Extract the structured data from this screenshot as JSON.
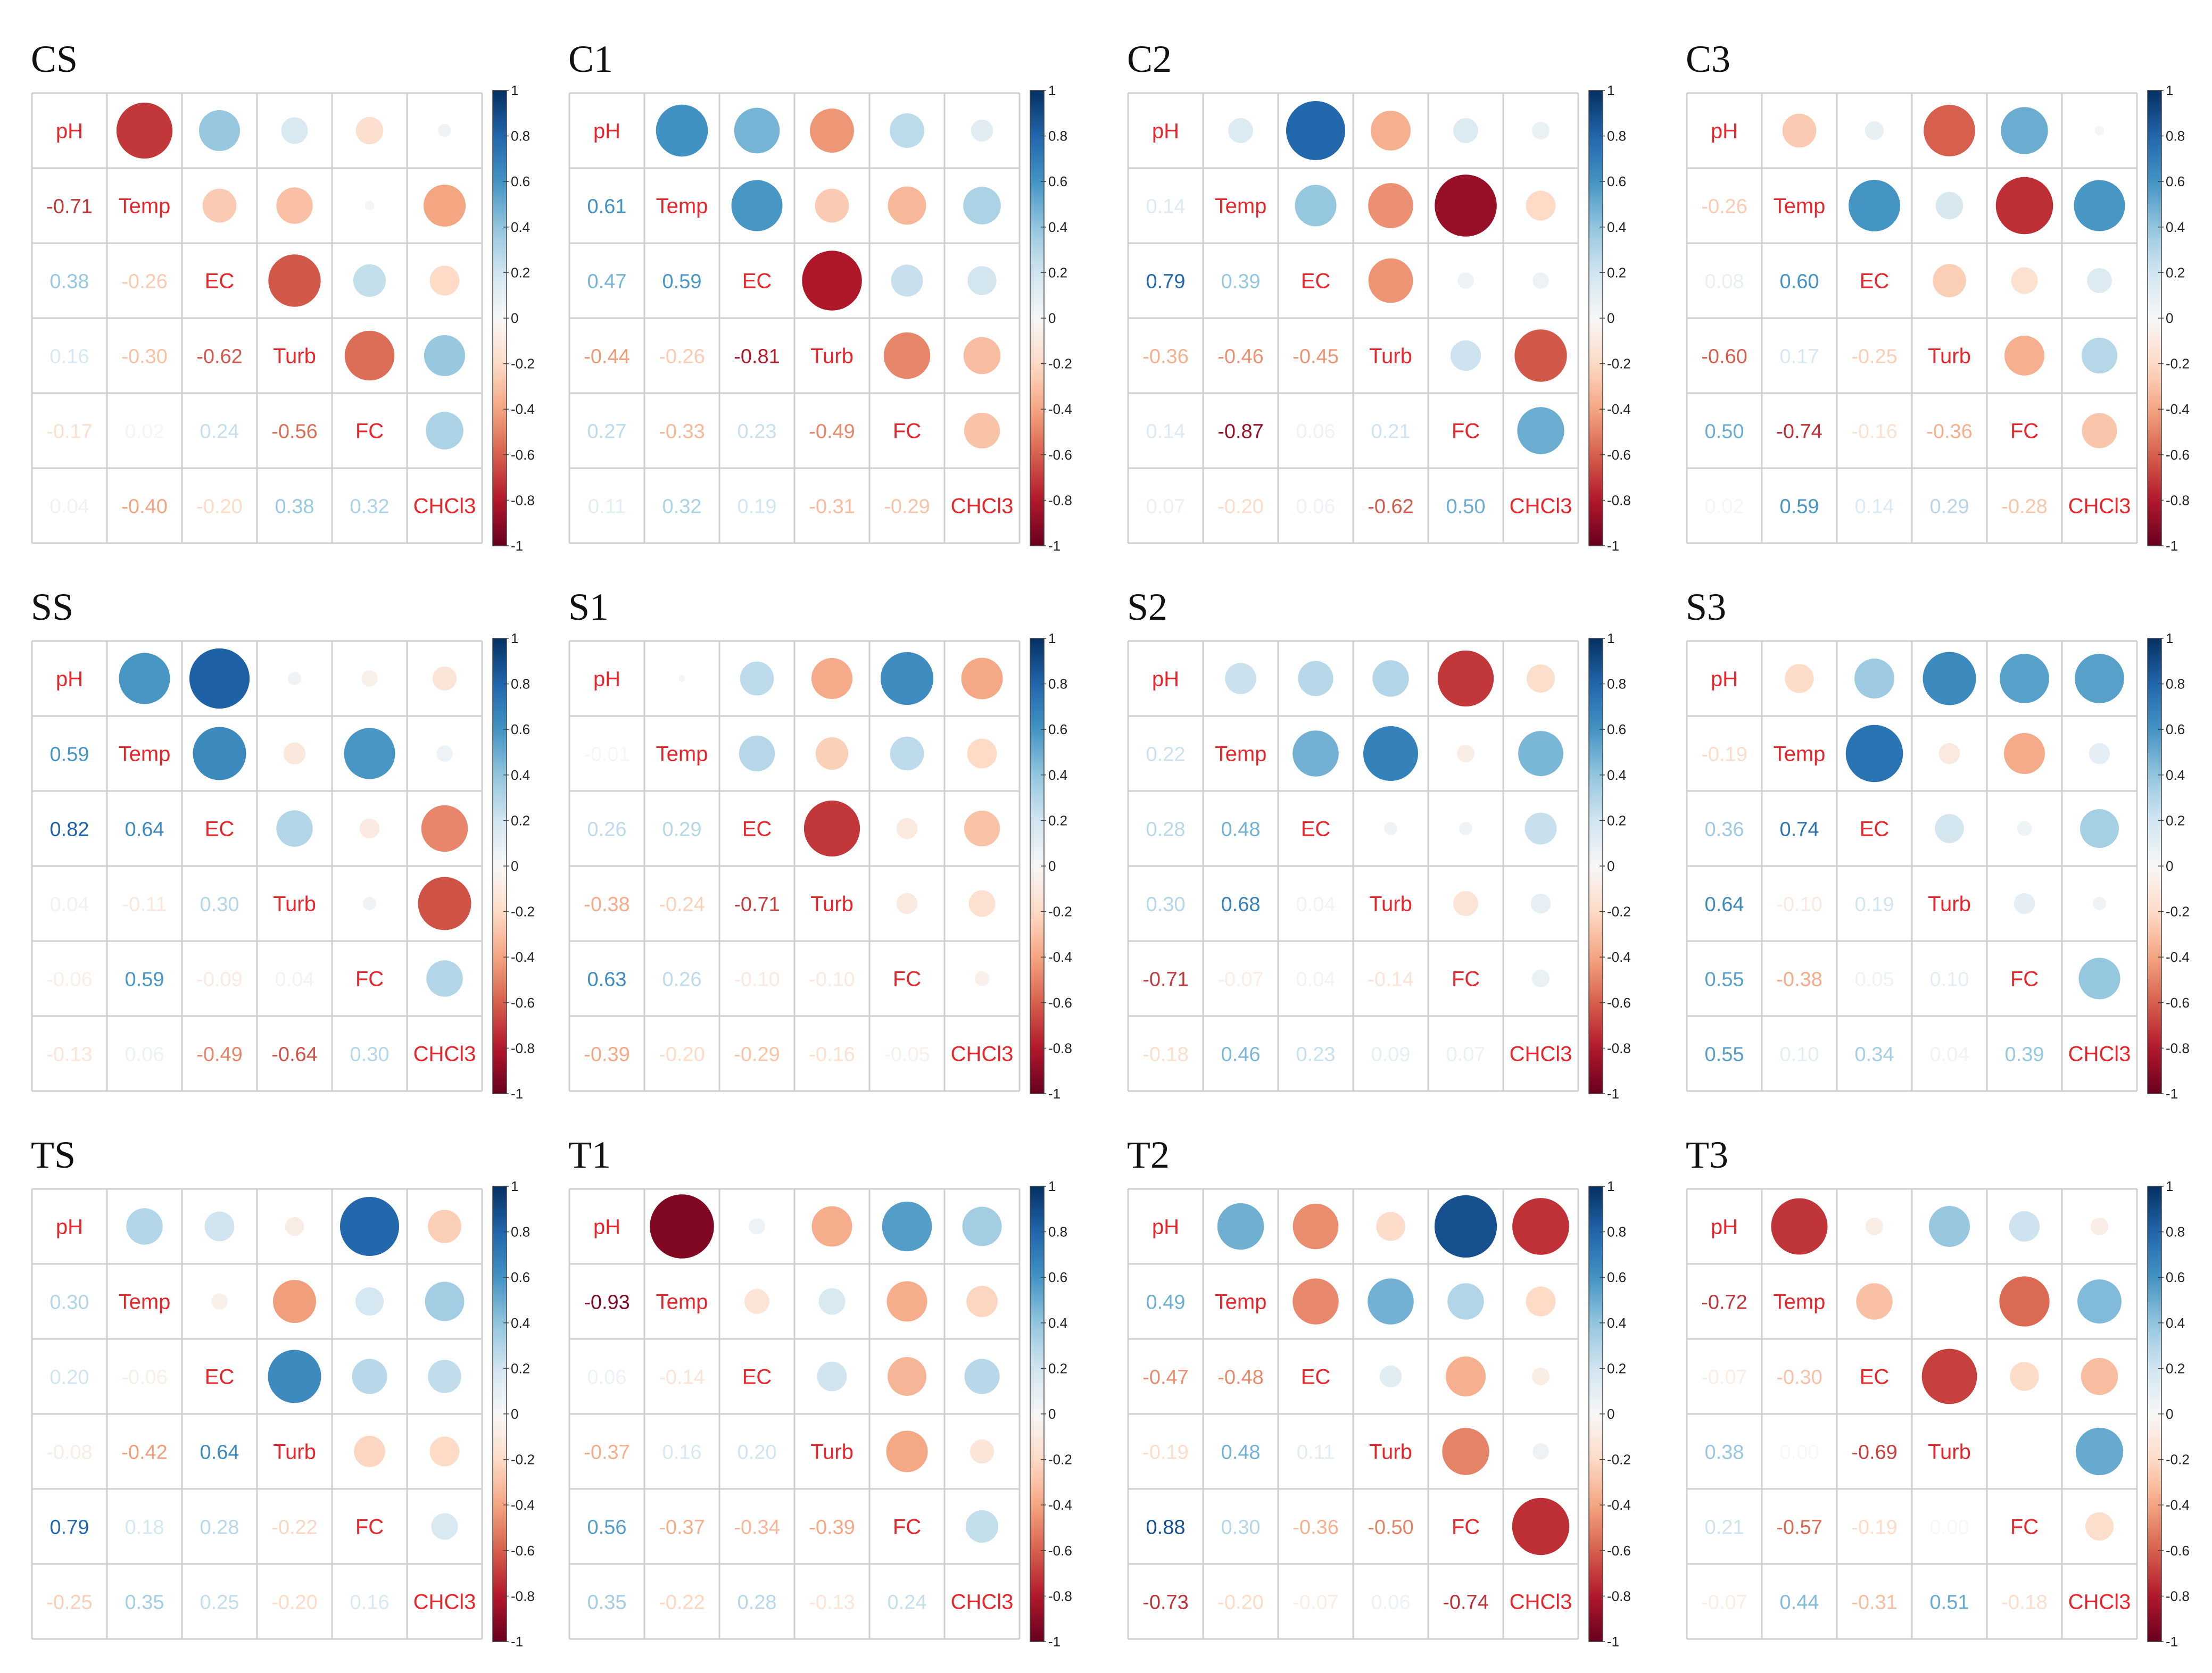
{
  "chart_data": {
    "type": "heatmap",
    "variables": [
      "pH",
      "Temp",
      "EC",
      "Turb",
      "FC",
      "CHCl3"
    ],
    "colorbar_ticks": [
      "1",
      "0.8",
      "0.6",
      "0.4",
      "0.2",
      "0",
      "-0.2",
      "-0.4",
      "-0.6",
      "-0.8",
      "-1"
    ],
    "colors": {
      "negative_strong": "#67001f",
      "positive_strong": "#053061",
      "label_text": "#e8252b",
      "grid": "#cfcfcf"
    },
    "panels": [
      {
        "title": "CS",
        "lower": [
          [
            -0.71
          ],
          [
            0.38,
            -0.26
          ],
          [
            0.16,
            -0.3,
            -0.62
          ],
          [
            -0.17,
            0.02,
            0.24,
            -0.56
          ],
          [
            0.04,
            -0.4,
            -0.2,
            0.38,
            0.32
          ]
        ]
      },
      {
        "title": "C1",
        "lower": [
          [
            0.61
          ],
          [
            0.47,
            0.59
          ],
          [
            -0.44,
            -0.26,
            -0.81
          ],
          [
            0.27,
            -0.33,
            0.23,
            -0.49
          ],
          [
            0.11,
            0.32,
            0.19,
            -0.31,
            -0.29
          ]
        ]
      },
      {
        "title": "C2",
        "lower": [
          [
            0.14
          ],
          [
            0.79,
            0.39
          ],
          [
            -0.36,
            -0.46,
            -0.45
          ],
          [
            0.14,
            -0.87,
            0.06,
            0.21
          ],
          [
            0.07,
            -0.2,
            0.06,
            -0.62,
            0.5
          ]
        ]
      },
      {
        "title": "C3",
        "lower": [
          [
            -0.26
          ],
          [
            0.08,
            0.6
          ],
          [
            -0.6,
            0.17,
            -0.25
          ],
          [
            0.5,
            -0.74,
            -0.16,
            -0.36
          ],
          [
            0.02,
            0.59,
            0.14,
            0.29,
            -0.28
          ]
        ]
      },
      {
        "title": "SS",
        "lower": [
          [
            0.59
          ],
          [
            0.82,
            0.64
          ],
          [
            0.04,
            -0.11,
            0.3
          ],
          [
            -0.06,
            0.59,
            -0.09,
            0.04
          ],
          [
            -0.13,
            0.06,
            -0.49,
            -0.64,
            0.3
          ]
        ]
      },
      {
        "title": "S1",
        "lower": [
          [
            -0.01
          ],
          [
            0.26,
            0.29
          ],
          [
            -0.38,
            -0.24,
            -0.71
          ],
          [
            0.63,
            0.26,
            -0.1,
            -0.1
          ],
          [
            -0.39,
            -0.2,
            -0.29,
            -0.16,
            -0.05
          ]
        ]
      },
      {
        "title": "S2",
        "lower": [
          [
            0.22
          ],
          [
            0.28,
            0.48
          ],
          [
            0.3,
            0.68,
            0.04
          ],
          [
            -0.71,
            -0.07,
            0.04,
            -0.14
          ],
          [
            -0.18,
            0.46,
            0.23,
            0.09,
            0.07
          ]
        ]
      },
      {
        "title": "S3",
        "lower": [
          [
            -0.19
          ],
          [
            0.36,
            0.74
          ],
          [
            0.64,
            -0.1,
            0.19
          ],
          [
            0.55,
            -0.38,
            0.05,
            0.1
          ],
          [
            0.55,
            0.1,
            0.34,
            0.04,
            0.39
          ]
        ]
      },
      {
        "title": "TS",
        "lower": [
          [
            0.3
          ],
          [
            0.2,
            -0.06
          ],
          [
            -0.08,
            -0.42,
            0.64
          ],
          [
            0.79,
            0.18,
            0.28,
            -0.22
          ],
          [
            -0.25,
            0.35,
            0.25,
            -0.2,
            0.16
          ]
        ]
      },
      {
        "title": "T1",
        "lower": [
          [
            -0.93
          ],
          [
            0.06,
            -0.14
          ],
          [
            -0.37,
            0.16,
            0.2
          ],
          [
            0.56,
            -0.37,
            -0.34,
            -0.39
          ],
          [
            0.35,
            -0.22,
            0.28,
            -0.13,
            0.24
          ]
        ]
      },
      {
        "title": "T2",
        "lower": [
          [
            0.49
          ],
          [
            -0.47,
            -0.48
          ],
          [
            -0.19,
            0.48,
            0.11
          ],
          [
            0.88,
            0.3,
            -0.36,
            -0.5
          ],
          [
            -0.73,
            -0.2,
            -0.07,
            0.06,
            -0.74
          ]
        ]
      },
      {
        "title": "T3",
        "lower": [
          [
            -0.72
          ],
          [
            -0.07,
            -0.3
          ],
          [
            0.38,
            0.0,
            -0.69
          ],
          [
            0.21,
            -0.57,
            -0.19,
            0.0
          ],
          [
            -0.07,
            0.44,
            -0.31,
            0.51,
            -0.18
          ]
        ]
      }
    ]
  }
}
